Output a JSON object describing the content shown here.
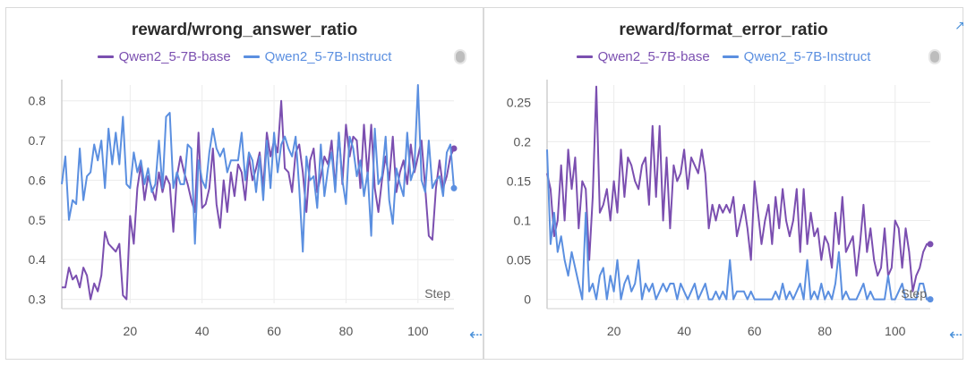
{
  "colors": {
    "base": "#7b4fb0",
    "instruct": "#5b8fe0",
    "grid": "#ececec",
    "axis": "#cfcfcf",
    "tick": "#555555"
  },
  "icons": {
    "legend_toggle": "toggle-icon",
    "collapse_left": "arrow-left-icon",
    "expand_top": "arrow-up-right-icon"
  },
  "panels": [
    {
      "title": "reward/wrong_answer_ratio",
      "legend": [
        "Qwen2_5-7B-base",
        "Qwen2_5-7B-Instruct"
      ],
      "step_label": "Step"
    },
    {
      "title": "reward/format_error_ratio",
      "legend": [
        "Qwen2_5-7B-base",
        "Qwen2_5-7B-Instruct"
      ],
      "step_label": "Step"
    }
  ],
  "chart_data": [
    {
      "type": "line",
      "title": "reward/wrong_answer_ratio",
      "xlabel": "Step",
      "xlim": [
        1,
        110
      ],
      "ylim": [
        0.29,
        0.84
      ],
      "xticks": [
        20,
        40,
        60,
        80,
        100
      ],
      "yticks": [
        0.3,
        0.4,
        0.5,
        0.6,
        0.7,
        0.8
      ],
      "ytick_labels": [
        "0.3",
        "0.4",
        "0.5",
        "0.6",
        "0.7",
        "0.8"
      ],
      "grid": true,
      "legend_position": "top",
      "series": [
        {
          "name": "Qwen2_5-7B-base",
          "x_start": 1,
          "values": [
            0.33,
            0.33,
            0.38,
            0.35,
            0.36,
            0.33,
            0.38,
            0.36,
            0.3,
            0.34,
            0.32,
            0.36,
            0.47,
            0.44,
            0.43,
            0.42,
            0.44,
            0.31,
            0.3,
            0.51,
            0.44,
            0.58,
            0.64,
            0.55,
            0.61,
            0.58,
            0.55,
            0.62,
            0.57,
            0.61,
            0.59,
            0.47,
            0.61,
            0.66,
            0.62,
            0.59,
            0.55,
            0.52,
            0.72,
            0.53,
            0.54,
            0.58,
            0.68,
            0.54,
            0.48,
            0.6,
            0.52,
            0.62,
            0.56,
            0.64,
            0.62,
            0.55,
            0.66,
            0.6,
            0.63,
            0.67,
            0.58,
            0.72,
            0.66,
            0.7,
            0.67,
            0.8,
            0.63,
            0.62,
            0.57,
            0.67,
            0.69,
            0.62,
            0.52,
            0.65,
            0.68,
            0.57,
            0.61,
            0.66,
            0.64,
            0.7,
            0.58,
            0.72,
            0.59,
            0.74,
            0.66,
            0.71,
            0.7,
            0.58,
            0.74,
            0.61,
            0.74,
            0.58,
            0.52,
            0.6,
            0.66,
            0.6,
            0.71,
            0.57,
            0.62,
            0.65,
            0.59,
            0.69,
            0.62,
            0.66,
            0.7,
            0.58,
            0.46,
            0.45,
            0.58,
            0.65,
            0.58,
            0.61,
            0.66,
            0.68
          ]
        },
        {
          "name": "Qwen2_5-7B-Instruct",
          "x_start": 1,
          "values": [
            0.59,
            0.66,
            0.5,
            0.55,
            0.54,
            0.68,
            0.55,
            0.61,
            0.62,
            0.69,
            0.65,
            0.7,
            0.58,
            0.73,
            0.64,
            0.72,
            0.64,
            0.76,
            0.59,
            0.58,
            0.67,
            0.62,
            0.65,
            0.59,
            0.63,
            0.57,
            0.59,
            0.7,
            0.58,
            0.76,
            0.77,
            0.58,
            0.62,
            0.59,
            0.59,
            0.69,
            0.68,
            0.44,
            0.65,
            0.6,
            0.58,
            0.67,
            0.73,
            0.68,
            0.66,
            0.68,
            0.62,
            0.65,
            0.65,
            0.65,
            0.72,
            0.6,
            0.67,
            0.65,
            0.57,
            0.66,
            0.55,
            0.7,
            0.58,
            0.72,
            0.62,
            0.69,
            0.71,
            0.68,
            0.66,
            0.71,
            0.58,
            0.42,
            0.66,
            0.6,
            0.61,
            0.53,
            0.69,
            0.56,
            0.63,
            0.67,
            0.57,
            0.72,
            0.6,
            0.54,
            0.71,
            0.68,
            0.61,
            0.65,
            0.56,
            0.62,
            0.46,
            0.73,
            0.59,
            0.61,
            0.71,
            0.55,
            0.49,
            0.63,
            0.59,
            0.56,
            0.72,
            0.6,
            0.63,
            0.84,
            0.6,
            0.57,
            0.7,
            0.58,
            0.6,
            0.61,
            0.56,
            0.67,
            0.69,
            0.58
          ]
        }
      ]
    },
    {
      "type": "line",
      "title": "reward/format_error_ratio",
      "xlabel": "Step",
      "xlim": [
        1,
        110
      ],
      "ylim": [
        -0.005,
        0.272
      ],
      "xticks": [
        20,
        40,
        60,
        80,
        100
      ],
      "yticks": [
        0,
        0.05,
        0.1,
        0.15,
        0.2,
        0.25
      ],
      "ytick_labels": [
        "0",
        "0.05",
        "0.1",
        "0.15",
        "0.2",
        "0.25"
      ],
      "grid": true,
      "legend_position": "top",
      "series": [
        {
          "name": "Qwen2_5-7B-base",
          "x_start": 1,
          "values": [
            0.16,
            0.14,
            0.08,
            0.1,
            0.17,
            0.1,
            0.19,
            0.14,
            0.18,
            0.09,
            0.15,
            0.14,
            0.05,
            0.13,
            0.27,
            0.11,
            0.12,
            0.14,
            0.1,
            0.15,
            0.11,
            0.19,
            0.13,
            0.18,
            0.17,
            0.15,
            0.14,
            0.17,
            0.18,
            0.12,
            0.22,
            0.13,
            0.22,
            0.1,
            0.18,
            0.09,
            0.17,
            0.15,
            0.16,
            0.19,
            0.14,
            0.18,
            0.17,
            0.16,
            0.19,
            0.16,
            0.09,
            0.12,
            0.1,
            0.12,
            0.11,
            0.12,
            0.11,
            0.13,
            0.08,
            0.1,
            0.12,
            0.09,
            0.05,
            0.15,
            0.11,
            0.07,
            0.1,
            0.12,
            0.07,
            0.13,
            0.09,
            0.14,
            0.1,
            0.08,
            0.1,
            0.14,
            0.06,
            0.14,
            0.07,
            0.11,
            0.08,
            0.09,
            0.05,
            0.08,
            0.07,
            0.04,
            0.11,
            0.07,
            0.13,
            0.06,
            0.07,
            0.08,
            0.03,
            0.07,
            0.12,
            0.06,
            0.09,
            0.05,
            0.03,
            0.04,
            0.09,
            0.03,
            0.04,
            0.1,
            0.09,
            0.04,
            0.09,
            0.06,
            0.01,
            0.03,
            0.04,
            0.06,
            0.07,
            0.07
          ]
        },
        {
          "name": "Qwen2_5-7B-Instruct",
          "x_start": 1,
          "values": [
            0.19,
            0.07,
            0.11,
            0.06,
            0.08,
            0.05,
            0.03,
            0.06,
            0.04,
            0.02,
            0.0,
            0.11,
            0.01,
            0.02,
            0.0,
            0.03,
            0.04,
            0.0,
            0.03,
            0.01,
            0.05,
            0.0,
            0.02,
            0.03,
            0.01,
            0.02,
            0.05,
            0.0,
            0.02,
            0.01,
            0.02,
            0.0,
            0.01,
            0.02,
            0.01,
            0.02,
            0.02,
            0.0,
            0.02,
            0.01,
            0.0,
            0.01,
            0.02,
            0.0,
            0.01,
            0.02,
            0.0,
            0.0,
            0.01,
            0.0,
            0.01,
            0.0,
            0.05,
            0.0,
            0.01,
            0.01,
            0.01,
            0.0,
            0.01,
            0.0,
            0.0,
            0.0,
            0.0,
            0.0,
            0.0,
            0.01,
            0.0,
            0.02,
            0.0,
            0.01,
            0.0,
            0.01,
            0.02,
            0.0,
            0.05,
            0.0,
            0.01,
            0.0,
            0.02,
            0.0,
            0.01,
            0.0,
            0.02,
            0.06,
            0.0,
            0.01,
            0.0,
            0.0,
            0.0,
            0.01,
            0.02,
            0.0,
            0.01,
            0.0,
            0.0,
            0.0,
            0.0,
            0.03,
            0.0,
            0.0,
            0.01,
            0.02,
            0.0,
            0.0,
            0.0,
            0.0,
            0.02,
            0.02,
            0.0,
            0.0
          ]
        }
      ]
    }
  ]
}
